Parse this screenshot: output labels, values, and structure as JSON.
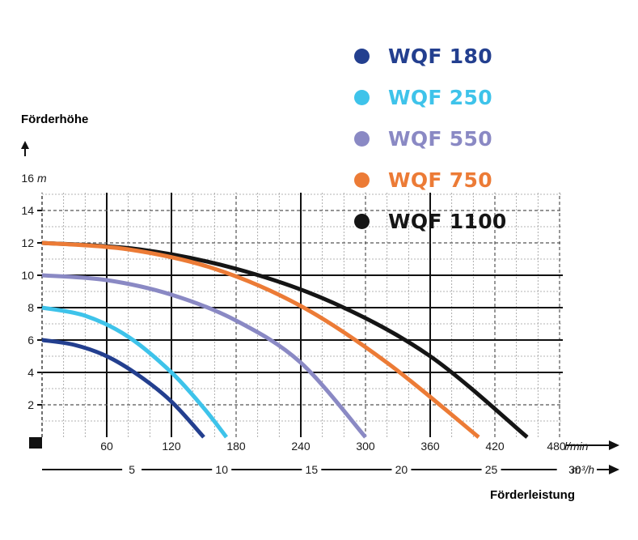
{
  "chart_data": {
    "type": "line",
    "ylabel": "Förderhöhe",
    "ylabel_unit": "m",
    "xlabel": "Förderleistung",
    "x_unit": "l/min",
    "x2_unit": "m³/h",
    "ylim": [
      0,
      16
    ],
    "xlim": [
      0,
      480
    ],
    "y_ticks": [
      2,
      4,
      6,
      8,
      10,
      12,
      14,
      16
    ],
    "x_ticks": [
      60,
      120,
      180,
      240,
      300,
      360,
      420,
      480
    ],
    "x2_ticks": [
      5,
      10,
      15,
      20,
      25,
      30
    ],
    "grid": true,
    "legend_position": "top-right",
    "series": [
      {
        "name": "WQF 180",
        "color": "#233f8f",
        "x": [
          0,
          30,
          60,
          90,
          120,
          150
        ],
        "y": [
          6,
          5.7,
          5.0,
          3.8,
          2.2,
          0
        ]
      },
      {
        "name": "WQF 250",
        "color": "#3ec3ea",
        "x": [
          0,
          40,
          80,
          120,
          150,
          171
        ],
        "y": [
          8,
          7.5,
          6.2,
          4.0,
          1.8,
          0
        ]
      },
      {
        "name": "WQF 550",
        "color": "#8a89c4",
        "x": [
          0,
          60,
          120,
          180,
          240,
          300
        ],
        "y": [
          10,
          9.7,
          8.8,
          7.2,
          4.6,
          0
        ]
      },
      {
        "name": "WQF 750",
        "color": "#ec7b36",
        "x": [
          0,
          80,
          160,
          240,
          320,
          405
        ],
        "y": [
          12,
          11.6,
          10.4,
          8.1,
          4.6,
          0
        ]
      },
      {
        "name": "WQF 1100",
        "color": "#151515",
        "x": [
          0,
          90,
          180,
          270,
          360,
          450
        ],
        "y": [
          12,
          11.6,
          10.4,
          8.3,
          5.0,
          0
        ]
      }
    ]
  }
}
